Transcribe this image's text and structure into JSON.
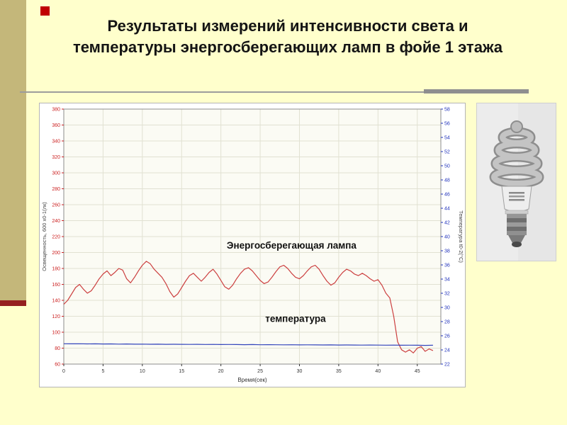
{
  "slide": {
    "title": "Результаты измерений интенсивности света и температуры энергосберегающих ламп в фойе 1 этажа",
    "bg_color": "#FFFFCC",
    "accent_bar_color": "#C4B77A",
    "accent_red_color": "#952020",
    "bullet_color": "#C00000"
  },
  "chart_data": {
    "type": "line",
    "title": "",
    "xlabel": "Время(сек)",
    "ylabel_left": "Освещенность, 600 х0-1(лк)",
    "ylabel_right": "Температура t0-2(°C)",
    "xlim": [
      0,
      48
    ],
    "x_ticks": [
      0,
      5,
      10,
      15,
      20,
      25,
      30,
      35,
      40,
      45
    ],
    "ylim_left": [
      60,
      380
    ],
    "ytick_step_left": 20,
    "ylim_right": [
      22,
      58
    ],
    "ytick_step_right": 2,
    "grid": true,
    "legend": "none",
    "axis_colors": {
      "left": "#CC2222",
      "right": "#2233BB",
      "x": "#333333"
    },
    "annotations": [
      {
        "text": "Энергосберегающая лампа",
        "x": 29,
        "y": 205
      },
      {
        "text": "температура",
        "x": 29.5,
        "y": 113
      }
    ],
    "series": [
      {
        "name": "Освещенность (энергосберегающая лампа)",
        "color": "#CC4040",
        "axis": "left",
        "points": [
          [
            0,
            135
          ],
          [
            0.5,
            140
          ],
          [
            1,
            148
          ],
          [
            1.5,
            156
          ],
          [
            2,
            160
          ],
          [
            2.5,
            154
          ],
          [
            3,
            149
          ],
          [
            3.5,
            152
          ],
          [
            4,
            159
          ],
          [
            4.5,
            167
          ],
          [
            5,
            173
          ],
          [
            5.5,
            177
          ],
          [
            6,
            171
          ],
          [
            6.5,
            175
          ],
          [
            7,
            180
          ],
          [
            7.5,
            178
          ],
          [
            8,
            167
          ],
          [
            8.5,
            162
          ],
          [
            9,
            169
          ],
          [
            9.5,
            177
          ],
          [
            10,
            184
          ],
          [
            10.5,
            189
          ],
          [
            11,
            186
          ],
          [
            11.5,
            179
          ],
          [
            12,
            174
          ],
          [
            12.5,
            169
          ],
          [
            13,
            161
          ],
          [
            13.5,
            151
          ],
          [
            14,
            144
          ],
          [
            14.5,
            148
          ],
          [
            15,
            156
          ],
          [
            15.5,
            164
          ],
          [
            16,
            171
          ],
          [
            16.5,
            174
          ],
          [
            17,
            169
          ],
          [
            17.5,
            164
          ],
          [
            18,
            169
          ],
          [
            18.5,
            175
          ],
          [
            19,
            179
          ],
          [
            19.5,
            173
          ],
          [
            20,
            165
          ],
          [
            20.5,
            157
          ],
          [
            21,
            154
          ],
          [
            21.5,
            159
          ],
          [
            22,
            167
          ],
          [
            22.5,
            174
          ],
          [
            23,
            179
          ],
          [
            23.5,
            181
          ],
          [
            24,
            177
          ],
          [
            24.5,
            171
          ],
          [
            25,
            165
          ],
          [
            25.5,
            161
          ],
          [
            26,
            163
          ],
          [
            26.5,
            169
          ],
          [
            27,
            176
          ],
          [
            27.5,
            182
          ],
          [
            28,
            184
          ],
          [
            28.5,
            180
          ],
          [
            29,
            174
          ],
          [
            29.5,
            169
          ],
          [
            30,
            167
          ],
          [
            30.5,
            171
          ],
          [
            31,
            177
          ],
          [
            31.5,
            182
          ],
          [
            32,
            184
          ],
          [
            32.5,
            179
          ],
          [
            33,
            171
          ],
          [
            33.5,
            164
          ],
          [
            34,
            159
          ],
          [
            34.5,
            162
          ],
          [
            35,
            169
          ],
          [
            35.5,
            175
          ],
          [
            36,
            179
          ],
          [
            36.5,
            177
          ],
          [
            37,
            173
          ],
          [
            37.5,
            171
          ],
          [
            38,
            174
          ],
          [
            38.5,
            171
          ],
          [
            39,
            167
          ],
          [
            39.5,
            164
          ],
          [
            40,
            166
          ],
          [
            40.5,
            159
          ],
          [
            41,
            149
          ],
          [
            41.5,
            143
          ],
          [
            42,
            120
          ],
          [
            42.5,
            88
          ],
          [
            43,
            78
          ],
          [
            43.5,
            75
          ],
          [
            44,
            78
          ],
          [
            44.5,
            74
          ],
          [
            45,
            80
          ],
          [
            45.5,
            82
          ],
          [
            46,
            76
          ],
          [
            46.5,
            79
          ],
          [
            47,
            77
          ]
        ]
      },
      {
        "name": "температура",
        "color": "#3344BB",
        "axis": "left",
        "points": [
          [
            0,
            85.5
          ],
          [
            1,
            85.4
          ],
          [
            2,
            85.5
          ],
          [
            3,
            85.3
          ],
          [
            4,
            85.4
          ],
          [
            5,
            85.2
          ],
          [
            6,
            85.3
          ],
          [
            7,
            85.1
          ],
          [
            8,
            85.2
          ],
          [
            9,
            85.0
          ],
          [
            10,
            85.1
          ],
          [
            11,
            84.9
          ],
          [
            12,
            85.0
          ],
          [
            13,
            84.8
          ],
          [
            14,
            84.9
          ],
          [
            15,
            84.8
          ],
          [
            16,
            84.7
          ],
          [
            17,
            84.8
          ],
          [
            18,
            84.6
          ],
          [
            19,
            84.7
          ],
          [
            20,
            84.5
          ],
          [
            21,
            84.6
          ],
          [
            22,
            84.5
          ],
          [
            23,
            84.4
          ],
          [
            24,
            84.5
          ],
          [
            25,
            84.3
          ],
          [
            26,
            84.4
          ],
          [
            27,
            84.3
          ],
          [
            28,
            84.2
          ],
          [
            29,
            84.3
          ],
          [
            30,
            84.1
          ],
          [
            31,
            84.2
          ],
          [
            32,
            84.1
          ],
          [
            33,
            84.0
          ],
          [
            34,
            84.1
          ],
          [
            35,
            83.9
          ],
          [
            36,
            84.0
          ],
          [
            37,
            83.9
          ],
          [
            38,
            83.8
          ],
          [
            39,
            83.9
          ],
          [
            40,
            83.8
          ],
          [
            41,
            83.7
          ],
          [
            42,
            83.8
          ],
          [
            43,
            83.6
          ],
          [
            44,
            83.7
          ],
          [
            45,
            83.6
          ],
          [
            46,
            83.5
          ],
          [
            47,
            83.6
          ]
        ]
      }
    ]
  },
  "lamp_photo": {
    "caption": "Энергосберегающая лампа (фото)"
  }
}
